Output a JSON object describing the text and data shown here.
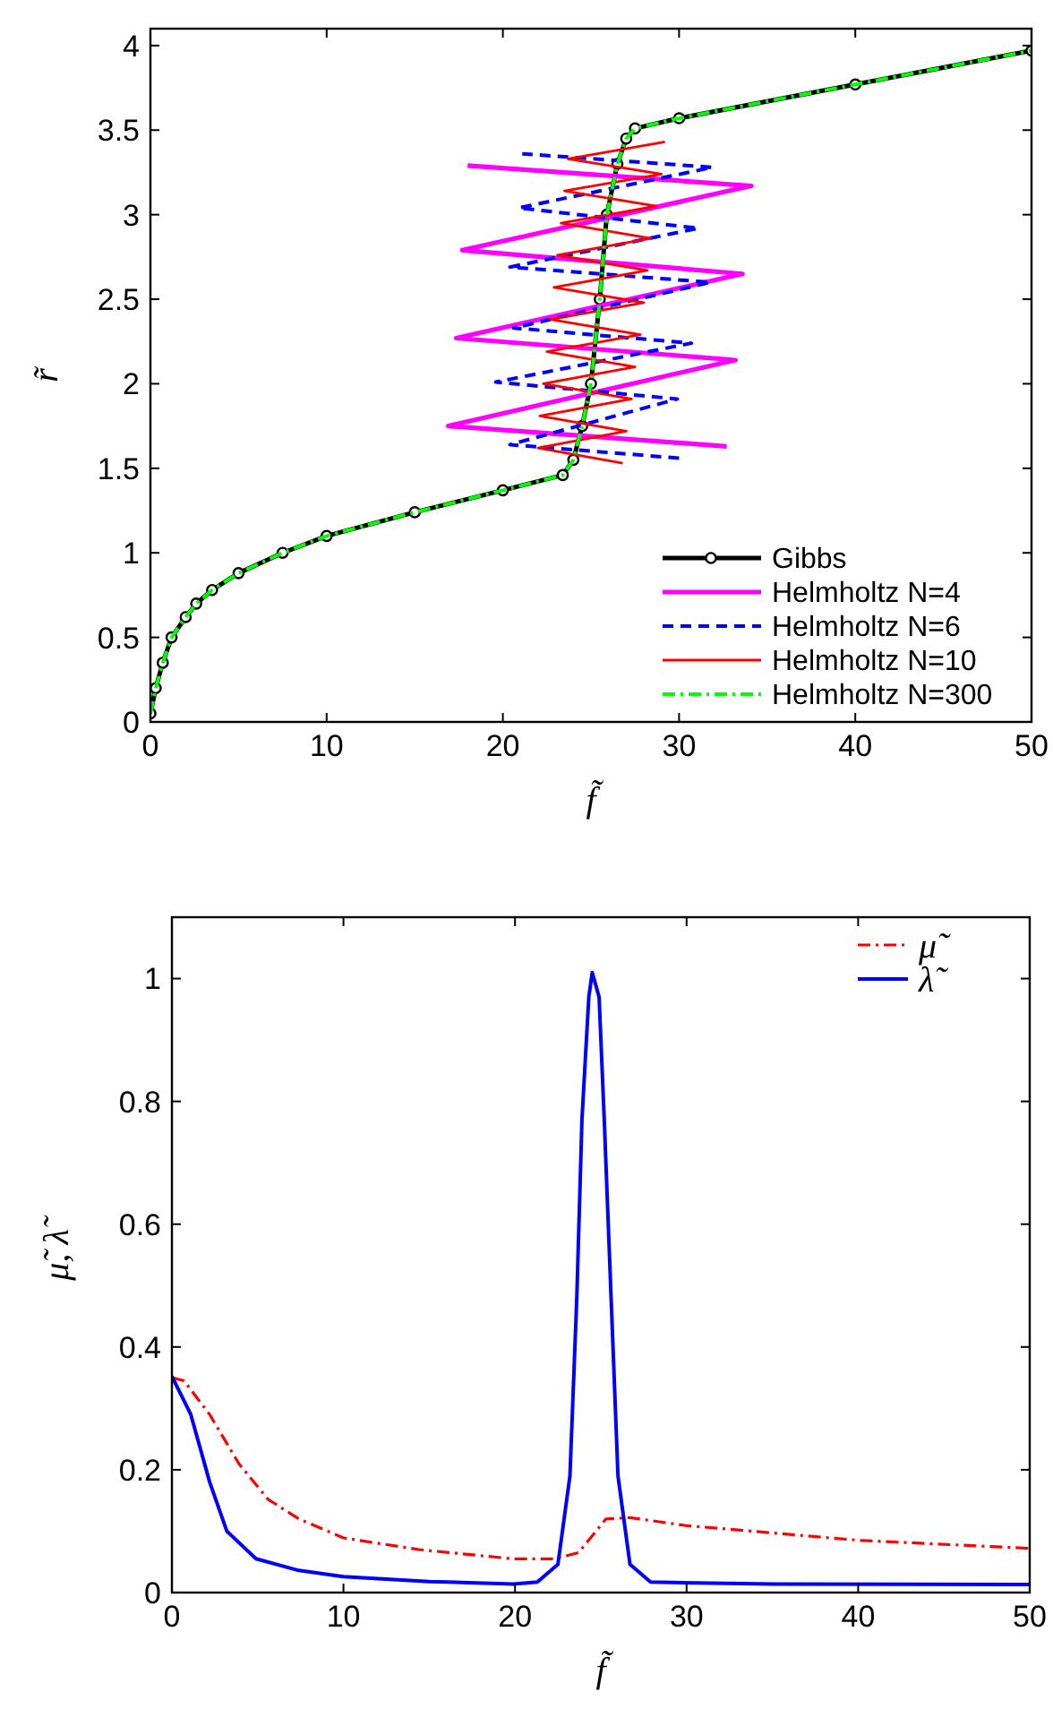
{
  "chart_data": [
    {
      "type": "line",
      "xlabel": "f̃",
      "ylabel": "r̃",
      "xlim": [
        0,
        50
      ],
      "ylim": [
        0,
        4.1
      ],
      "xticks": [
        0,
        10,
        20,
        30,
        40,
        50
      ],
      "yticks": [
        0,
        0.5,
        1,
        1.5,
        2,
        2.5,
        3,
        3.5,
        4
      ],
      "grid": false,
      "legend": "bottom right",
      "series": [
        {
          "name": "Gibbs",
          "color": "#000000",
          "marker": "circle",
          "line_style": "solid",
          "x": [
            0,
            0.3,
            0.7,
            1.2,
            2,
            2.6,
            3.5,
            5,
            7.5,
            10,
            15,
            20,
            23.4,
            24,
            24.5,
            25,
            25.5,
            25.9,
            26.5,
            27,
            27.5,
            30,
            40,
            50
          ],
          "values": [
            0.05,
            0.2,
            0.35,
            0.5,
            0.62,
            0.7,
            0.78,
            0.88,
            1,
            1.1,
            1.24,
            1.37,
            1.46,
            1.55,
            1.75,
            2,
            2.5,
            3,
            3.3,
            3.45,
            3.51,
            3.57,
            3.77,
            3.97
          ]
        },
        {
          "name": "Helmholtz N=4",
          "color": "#ff00ff",
          "line_style": "solid",
          "x": [
            32.7,
            16.9,
            33.2,
            17.35,
            33.6,
            17.7,
            34.1,
            18
          ],
          "values": [
            1.63,
            1.75,
            2.14,
            2.27,
            2.65,
            2.79,
            3.17,
            3.29
          ]
        },
        {
          "name": "Helmholtz N=6",
          "color": "#0000ff",
          "line_style": "dashed",
          "x": [
            30,
            20.4,
            29.9,
            19.6,
            30.7,
            20.6,
            31.8,
            20.4,
            31.1,
            20.9,
            31.9,
            21.1
          ],
          "values": [
            1.56,
            1.64,
            1.91,
            2.01,
            2.24,
            2.33,
            2.6,
            2.69,
            2.92,
            3.04,
            3.28,
            3.36
          ]
        },
        {
          "name": "Helmholtz N=10",
          "color": "#ff0000",
          "line_style": "solid",
          "x": [
            26.8,
            22,
            27,
            22.1,
            27.3,
            22.3,
            27.5,
            22.5,
            27.8,
            22.7,
            28,
            22.9,
            28.2,
            23.1,
            28.4,
            23.3,
            28.7,
            23.5,
            29,
            23.7,
            29.2
          ],
          "values": [
            1.53,
            1.62,
            1.72,
            1.81,
            1.91,
            2,
            2.1,
            2.19,
            2.29,
            2.38,
            2.48,
            2.57,
            2.67,
            2.76,
            2.86,
            2.95,
            3.05,
            3.14,
            3.24,
            3.33,
            3.43
          ]
        },
        {
          "name": "Helmholtz N=300",
          "color": "#00ff00",
          "line_style": "dashdot",
          "x": [
            0,
            0.3,
            0.7,
            1.2,
            2,
            2.6,
            3.5,
            5,
            7.5,
            10,
            15,
            20,
            23.4,
            24,
            24.5,
            25,
            25.5,
            25.9,
            26.5,
            27,
            27.5,
            30,
            40,
            50
          ],
          "values": [
            0.05,
            0.2,
            0.35,
            0.5,
            0.62,
            0.7,
            0.78,
            0.88,
            1,
            1.1,
            1.24,
            1.37,
            1.46,
            1.55,
            1.75,
            2,
            2.5,
            3,
            3.3,
            3.45,
            3.51,
            3.57,
            3.77,
            3.97
          ]
        }
      ]
    },
    {
      "type": "line",
      "xlabel": "f̃",
      "ylabel": "μ̃, λ̃",
      "xlim": [
        0,
        50
      ],
      "ylim": [
        0,
        1.1
      ],
      "xticks": [
        0,
        10,
        20,
        30,
        40,
        50
      ],
      "yticks": [
        0,
        0.2,
        0.4,
        0.6,
        0.8,
        1
      ],
      "grid": false,
      "legend": "top right",
      "series": [
        {
          "name": "μ̃",
          "color": "#ff0000",
          "line_style": "dashdot",
          "x": [
            0,
            0.7,
            2.2,
            3.9,
            5.6,
            7.4,
            10,
            14.4,
            19.9,
            22.3,
            23.7,
            25.3,
            26.7,
            30,
            40.1,
            50
          ],
          "values": [
            0.35,
            0.345,
            0.29,
            0.21,
            0.152,
            0.12,
            0.089,
            0.07,
            0.055,
            0.055,
            0.065,
            0.12,
            0.122,
            0.109,
            0.085,
            0.072
          ]
        },
        {
          "name": "λ̃",
          "color": "#0000ff",
          "line_style": "solid",
          "x": [
            0,
            1.1,
            2.2,
            3.2,
            4.9,
            7.4,
            10,
            15,
            19.9,
            21.3,
            22.5,
            23.2,
            23.6,
            23.9,
            24.3,
            24.5,
            24.9,
            25.2,
            25.6,
            26,
            26.7,
            27.9,
            35,
            50
          ],
          "values": [
            0.352,
            0.29,
            0.18,
            0.1,
            0.055,
            0.036,
            0.026,
            0.018,
            0.014,
            0.017,
            0.046,
            0.19,
            0.48,
            0.77,
            0.97,
            1.01,
            0.97,
            0.77,
            0.48,
            0.19,
            0.046,
            0.017,
            0.014,
            0.013
          ]
        }
      ]
    }
  ]
}
